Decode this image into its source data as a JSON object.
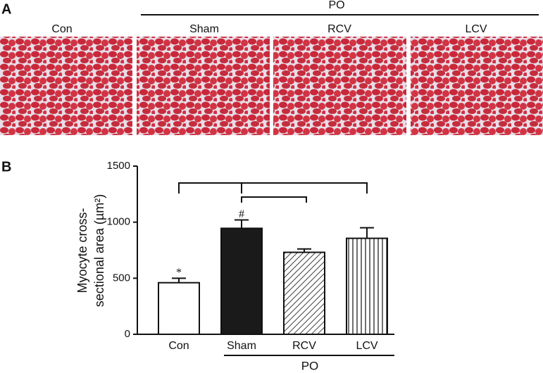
{
  "panel_a": {
    "label": "A",
    "group": "PO",
    "images": [
      "Con",
      "Sham",
      "RCV",
      "LCV"
    ]
  },
  "chart_data": {
    "type": "bar",
    "panel": "B",
    "ylabel_lines": [
      "Myocyte cross-",
      "sectional area (µm²)"
    ],
    "categories": [
      "Con",
      "Sham",
      "RCV",
      "LCV"
    ],
    "values": [
      460,
      945,
      731,
      856
    ],
    "errors": [
      40,
      75,
      30,
      94
    ],
    "styles": [
      "open",
      "solid",
      "diagonal",
      "vertical"
    ],
    "color": "#1a1a1a",
    "annotations": [
      "*",
      "#",
      null,
      null
    ],
    "group_label": "PO",
    "ylim": [
      0,
      1500
    ],
    "yticks": [
      0,
      500,
      1000,
      1500
    ]
  }
}
